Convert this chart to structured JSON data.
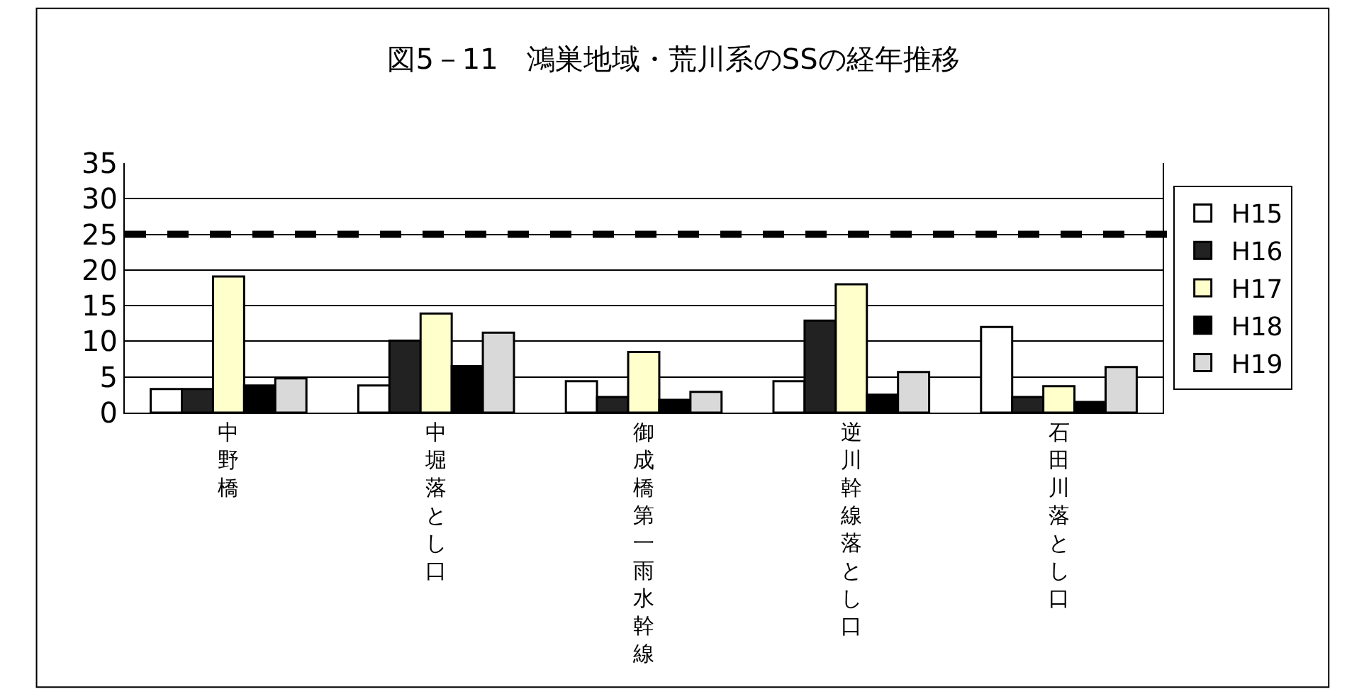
{
  "chart_data": {
    "type": "bar",
    "title": "図5－11　鴻巣地域・荒川系のSSの経年推移",
    "categories": [
      "中野橋",
      "中堀落とし口",
      "御成橋第一雨水幹線",
      "逆川幹線落とし口",
      "石田川落とし口"
    ],
    "series": [
      {
        "name": "H15",
        "color": "#ffffff",
        "values": [
          3.3,
          3.8,
          4.4,
          4.4,
          12.0
        ]
      },
      {
        "name": "H16",
        "color": "#222222",
        "values": [
          3.3,
          10.1,
          2.2,
          12.9,
          2.2
        ]
      },
      {
        "name": "H17",
        "color": "#ffffcc",
        "values": [
          19.1,
          13.9,
          8.5,
          18.0,
          3.7
        ]
      },
      {
        "name": "H18",
        "color": "#000000",
        "values": [
          3.8,
          6.5,
          1.8,
          2.5,
          1.5
        ]
      },
      {
        "name": "H19",
        "color": "#d9d9d9",
        "values": [
          4.8,
          11.2,
          2.9,
          5.7,
          6.4
        ]
      }
    ],
    "ylim": [
      0,
      35
    ],
    "yticks": [
      0,
      5,
      10,
      15,
      20,
      25,
      30,
      35
    ],
    "grid": "y",
    "legend": "right",
    "ref_lines": [
      {
        "axis": "y",
        "value": 25,
        "color": "#000000",
        "line_style": "dashed"
      }
    ]
  }
}
